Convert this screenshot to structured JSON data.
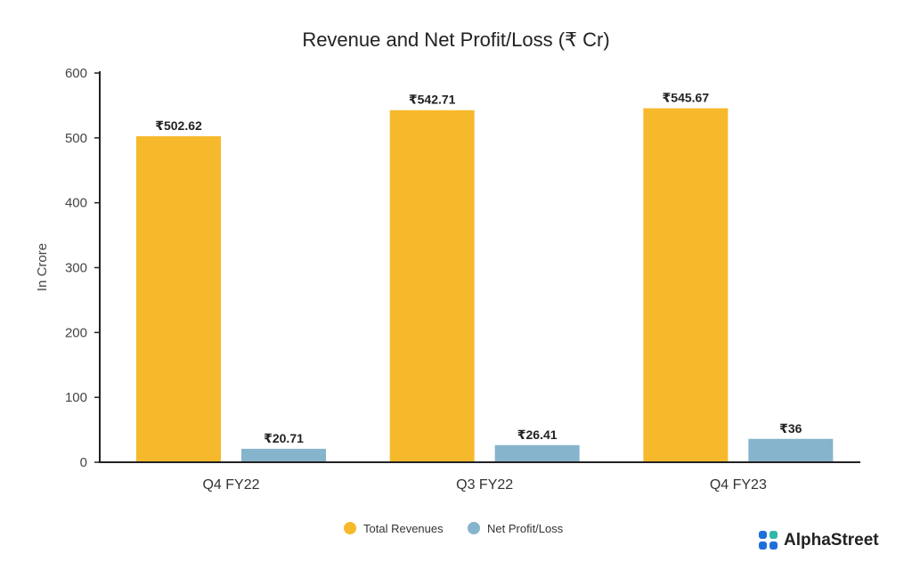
{
  "chart_data": {
    "type": "bar",
    "title": "Revenue and Net Profit/Loss (₹ Cr)",
    "xlabel": "",
    "ylabel": "In Crore",
    "ylim": [
      0,
      600
    ],
    "yticks": [
      0,
      100,
      200,
      300,
      400,
      500,
      600
    ],
    "categories": [
      "Q4 FY22",
      "Q3 FY22",
      "Q4 FY23"
    ],
    "series": [
      {
        "name": "Total Revenues",
        "color": "#F6B92B",
        "values": [
          502.62,
          542.71,
          545.67
        ],
        "labels": [
          "₹502.62",
          "₹542.71",
          "₹545.67"
        ]
      },
      {
        "name": "Net Profit/Loss",
        "color": "#86B4CC",
        "values": [
          20.71,
          26.41,
          36
        ],
        "labels": [
          "₹20.71",
          "₹26.41",
          "₹36"
        ]
      }
    ],
    "legend_position": "bottom-center",
    "grid": false
  },
  "brand": {
    "name": "AlphaStreet",
    "logo_icon": "alphastreet-logo-icon",
    "logo_color": "#1E6FD9"
  }
}
